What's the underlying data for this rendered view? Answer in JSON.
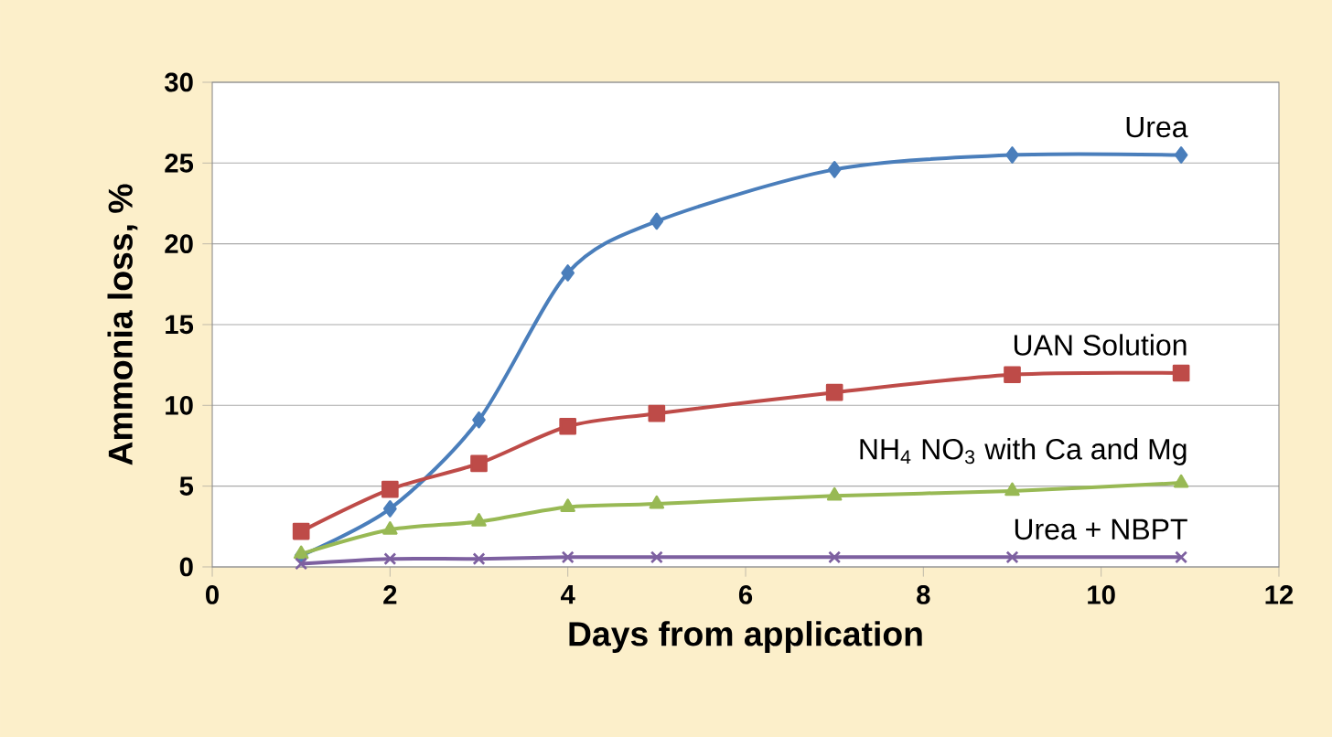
{
  "chart_data": {
    "type": "line",
    "xlabel": "Days from application",
    "ylabel": "Ammonia loss, %",
    "xlim": [
      0,
      12
    ],
    "ylim": [
      0,
      30
    ],
    "xticks": [
      0,
      2,
      4,
      6,
      8,
      10,
      12
    ],
    "yticks": [
      0,
      5,
      10,
      15,
      20,
      25,
      30
    ],
    "grid": "y",
    "line_style": "solid",
    "series": [
      {
        "name": "Urea",
        "color": "#4a7ebb",
        "marker": "diamond",
        "x": [
          1,
          2,
          3,
          4,
          5,
          7,
          9,
          10.9
        ],
        "values": [
          0.7,
          3.6,
          9.1,
          18.2,
          21.4,
          24.6,
          25.5,
          25.5
        ]
      },
      {
        "name": "UAN Solution",
        "color": "#be4b48",
        "marker": "square",
        "x": [
          1,
          2,
          3,
          4,
          5,
          7,
          9,
          10.9
        ],
        "values": [
          2.2,
          4.8,
          6.4,
          8.7,
          9.5,
          10.8,
          11.9,
          12.0
        ]
      },
      {
        "name": "NH$_{4}$ NO$_{3}$ with Ca and Mg",
        "color": "#98b954",
        "marker": "triangle",
        "x": [
          1,
          2,
          3,
          4,
          5,
          7,
          9,
          10.9
        ],
        "values": [
          0.8,
          2.3,
          2.8,
          3.7,
          3.9,
          4.4,
          4.7,
          5.2
        ]
      },
      {
        "name": "Urea + NBPT",
        "color": "#7d60a0",
        "marker": "cross",
        "x": [
          1,
          2,
          3,
          4,
          5,
          7,
          9,
          10.9
        ],
        "values": [
          0.2,
          0.5,
          0.5,
          0.6,
          0.6,
          0.6,
          0.6,
          0.6
        ]
      }
    ]
  }
}
